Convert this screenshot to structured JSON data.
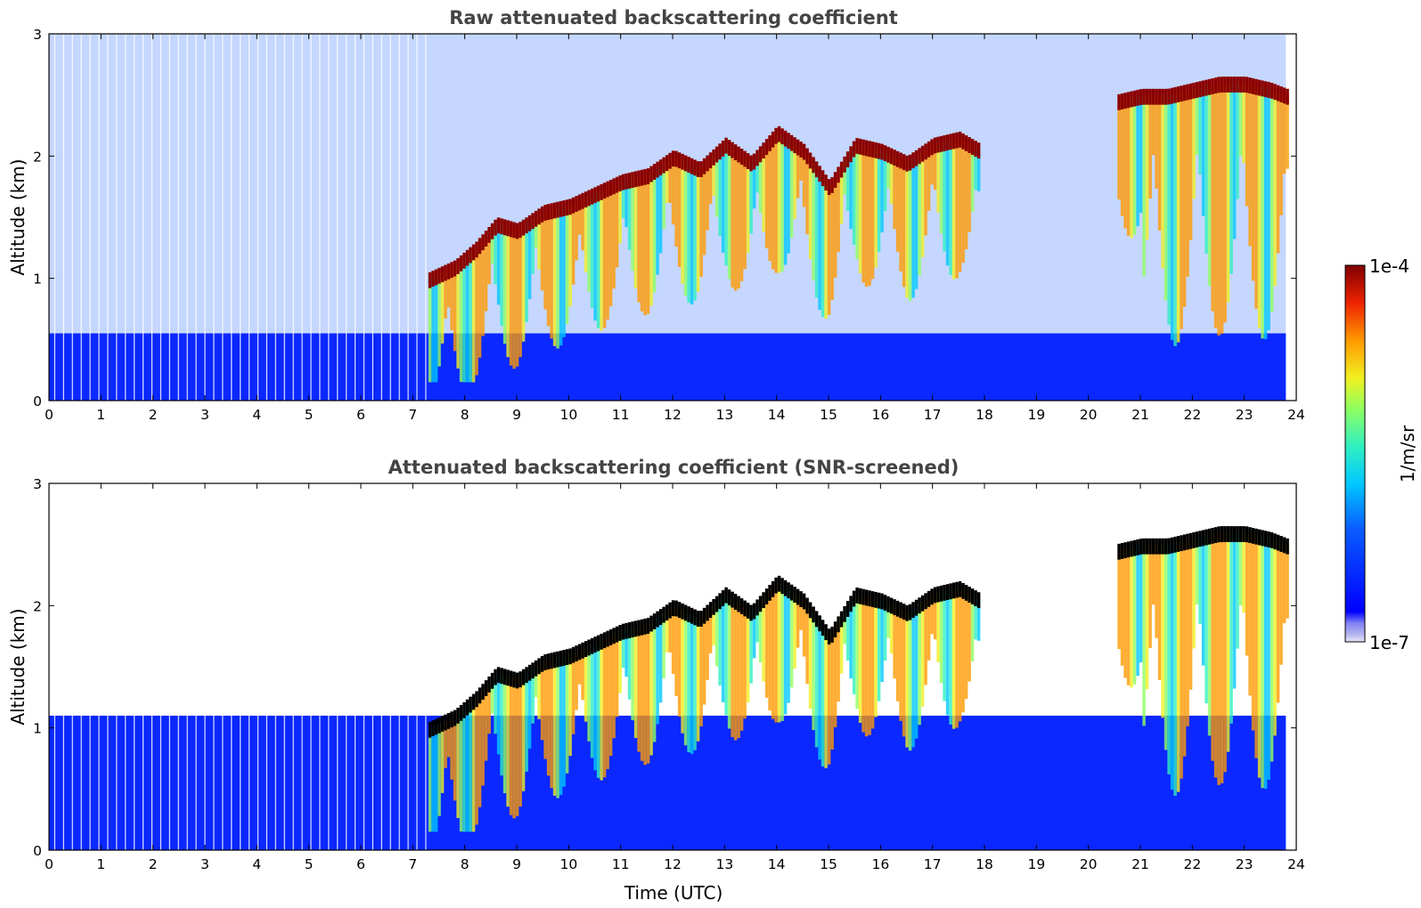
{
  "chart_data": [
    {
      "type": "heatmap",
      "title": "Raw attenuated backscattering coefficient",
      "xlabel": "",
      "ylabel": "Altitude (km)",
      "xlim": [
        0,
        24
      ],
      "ylim": [
        0,
        3
      ],
      "x_ticks": [
        "0",
        "1",
        "2",
        "3",
        "4",
        "5",
        "6",
        "7",
        "8",
        "9",
        "10",
        "11",
        "12",
        "13",
        "14",
        "15",
        "16",
        "17",
        "18",
        "19",
        "20",
        "21",
        "22",
        "23",
        "24"
      ],
      "y_ticks": [
        "0",
        "1",
        "2",
        "3"
      ],
      "data_end_time": 23.8,
      "screened": false,
      "cloud_base_km": [
        {
          "t": 7.3,
          "z": 1.0
        },
        {
          "t": 7.8,
          "z": 1.1
        },
        {
          "t": 8.2,
          "z": 1.25
        },
        {
          "t": 8.6,
          "z": 1.45
        },
        {
          "t": 9.0,
          "z": 1.4
        },
        {
          "t": 9.5,
          "z": 1.55
        },
        {
          "t": 10.0,
          "z": 1.6
        },
        {
          "t": 10.5,
          "z": 1.7
        },
        {
          "t": 11.0,
          "z": 1.8
        },
        {
          "t": 11.5,
          "z": 1.85
        },
        {
          "t": 12.0,
          "z": 2.0
        },
        {
          "t": 12.5,
          "z": 1.9
        },
        {
          "t": 13.0,
          "z": 2.1
        },
        {
          "t": 13.5,
          "z": 1.95
        },
        {
          "t": 14.0,
          "z": 2.2
        },
        {
          "t": 14.5,
          "z": 2.05
        },
        {
          "t": 15.0,
          "z": 1.75
        },
        {
          "t": 15.5,
          "z": 2.1
        },
        {
          "t": 16.0,
          "z": 2.05
        },
        {
          "t": 16.5,
          "z": 1.95
        },
        {
          "t": 17.0,
          "z": 2.1
        },
        {
          "t": 17.5,
          "z": 2.15
        },
        {
          "t": 17.9,
          "z": 2.05
        },
        {
          "t": 20.5,
          "z": 2.45
        },
        {
          "t": 21.0,
          "z": 2.5
        },
        {
          "t": 21.5,
          "z": 2.5
        },
        {
          "t": 22.0,
          "z": 2.55
        },
        {
          "t": 22.5,
          "z": 2.6
        },
        {
          "t": 23.0,
          "z": 2.6
        },
        {
          "t": 23.5,
          "z": 2.55
        },
        {
          "t": 23.8,
          "z": 2.5
        }
      ]
    },
    {
      "type": "heatmap",
      "title": "Attenuated backscattering coefficient (SNR-screened)",
      "xlabel": "Time (UTC)",
      "ylabel": "Altitude (km)",
      "xlim": [
        0,
        24
      ],
      "ylim": [
        0,
        3
      ],
      "x_ticks": [
        "0",
        "1",
        "2",
        "3",
        "4",
        "5",
        "6",
        "7",
        "8",
        "9",
        "10",
        "11",
        "12",
        "13",
        "14",
        "15",
        "16",
        "17",
        "18",
        "19",
        "20",
        "21",
        "22",
        "23",
        "24"
      ],
      "y_ticks": [
        "0",
        "1",
        "2",
        "3"
      ],
      "data_end_time": 23.8,
      "screened": true
    }
  ],
  "colorbar": {
    "label": "1/m/sr",
    "min_label": "1e-7",
    "max_label": "1e-4",
    "scale": "log",
    "colormap": "jet"
  }
}
